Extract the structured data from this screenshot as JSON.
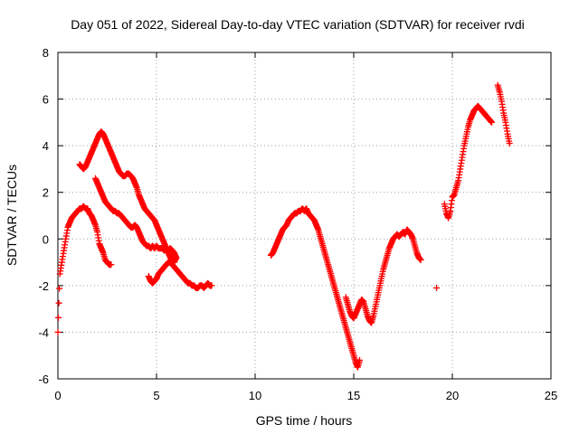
{
  "chart_data": {
    "type": "scatter",
    "title": "Day 051 of 2022, Sidereal Day-to-day VTEC variation (SDTVAR) for receiver rvdi",
    "xlabel": "GPS time / hours",
    "ylabel": "SDTVAR / TECUs",
    "xlim": [
      0,
      25
    ],
    "ylim": [
      -6,
      8
    ],
    "xticks": [
      0,
      5,
      10,
      15,
      20,
      25
    ],
    "yticks": [
      -6,
      -4,
      -2,
      0,
      2,
      4,
      6,
      8
    ],
    "grid": true,
    "marker": "plus",
    "color": "#ff0000",
    "series": [
      {
        "x": [
          0.0,
          0.1,
          0.2,
          0.3,
          0.4,
          0.5,
          0.6,
          0.7,
          0.8,
          0.9,
          1.0,
          1.1,
          1.2,
          1.3,
          1.4,
          1.5,
          1.6,
          1.7,
          1.8,
          1.9,
          2.0,
          2.1,
          2.2,
          2.3,
          2.4,
          2.5,
          2.6,
          2.7
        ],
        "y": [
          -4.0,
          -1.5,
          -1.0,
          -0.5,
          0.0,
          0.5,
          0.7,
          0.9,
          1.0,
          1.1,
          1.2,
          1.3,
          1.3,
          1.4,
          1.3,
          1.3,
          1.1,
          1.0,
          0.8,
          0.6,
          0.3,
          -0.2,
          -0.4,
          -0.6,
          -0.9,
          -1.0,
          -1.1,
          -1.1
        ]
      },
      {
        "x": [
          1.1,
          1.2,
          1.3,
          1.4,
          1.5,
          1.6,
          1.7,
          1.8,
          1.9,
          2.0,
          2.1,
          2.2,
          2.3,
          2.4,
          2.5,
          2.6,
          2.7,
          2.8,
          2.9,
          3.0,
          3.1,
          3.2,
          3.3,
          3.4,
          3.5,
          3.6,
          3.7,
          3.8,
          3.9,
          4.0,
          4.1,
          4.2,
          4.3,
          4.4,
          4.5,
          4.6,
          4.7,
          4.8,
          4.9,
          5.0,
          5.1,
          5.2,
          5.3,
          5.4,
          5.5,
          5.6,
          5.7,
          5.8,
          5.9,
          6.0
        ],
        "y": [
          3.2,
          3.1,
          3.0,
          3.1,
          3.3,
          3.5,
          3.7,
          3.9,
          4.1,
          4.3,
          4.5,
          4.6,
          4.5,
          4.3,
          4.1,
          3.9,
          3.7,
          3.5,
          3.3,
          3.1,
          2.9,
          2.8,
          2.7,
          2.7,
          2.8,
          2.8,
          2.7,
          2.6,
          2.4,
          2.2,
          1.9,
          1.7,
          1.5,
          1.3,
          1.2,
          1.1,
          1.0,
          0.9,
          0.8,
          0.6,
          0.4,
          0.2,
          0.0,
          -0.2,
          -0.4,
          -0.6,
          -0.8,
          -0.9,
          -1.0,
          -0.8
        ]
      },
      {
        "x": [
          1.9,
          2.0,
          2.1,
          2.2,
          2.3,
          2.4,
          2.5,
          2.6,
          2.7,
          2.8,
          2.9,
          3.0,
          3.1,
          3.2,
          3.3,
          3.4,
          3.5,
          3.6,
          3.7,
          3.8,
          3.9,
          4.0,
          4.1,
          4.2,
          4.3,
          4.4,
          4.5,
          4.6,
          4.7,
          4.8,
          4.9,
          5.0,
          5.1,
          5.2,
          5.3,
          5.4,
          5.5,
          5.6,
          5.7,
          5.8,
          5.9,
          6.0
        ],
        "y": [
          2.6,
          2.4,
          2.2,
          2.0,
          1.8,
          1.6,
          1.5,
          1.4,
          1.3,
          1.2,
          1.2,
          1.1,
          1.1,
          1.0,
          0.9,
          0.8,
          0.7,
          0.6,
          0.5,
          0.5,
          0.6,
          0.5,
          0.3,
          0.1,
          -0.1,
          -0.2,
          -0.3,
          -0.3,
          -0.4,
          -0.3,
          -0.4,
          -0.3,
          -0.4,
          -0.4,
          -0.4,
          -0.5,
          -0.4,
          -0.5,
          -0.4,
          -0.5,
          -0.6,
          -0.8
        ]
      },
      {
        "x": [
          4.6,
          4.7,
          4.8,
          4.9,
          5.0,
          5.1,
          5.2,
          5.3,
          5.4,
          5.5,
          5.6,
          5.7,
          5.8,
          5.9,
          6.0,
          6.1,
          6.2,
          6.3,
          6.4,
          6.5,
          6.6,
          6.7,
          6.8,
          6.9,
          7.0,
          7.1,
          7.2,
          7.3,
          7.4,
          7.5,
          7.6,
          7.7,
          7.8
        ],
        "y": [
          -1.6,
          -1.8,
          -1.9,
          -1.8,
          -1.7,
          -1.5,
          -1.4,
          -1.3,
          -1.2,
          -1.1,
          -1.0,
          -1.0,
          -1.1,
          -1.2,
          -1.3,
          -1.4,
          -1.5,
          -1.6,
          -1.7,
          -1.8,
          -1.9,
          -1.9,
          -2.0,
          -2.0,
          -2.1,
          -2.1,
          -2.0,
          -2.0,
          -2.1,
          -2.0,
          -1.9,
          -2.0,
          -2.0
        ]
      },
      {
        "x": [
          10.8,
          10.9,
          11.0,
          11.1,
          11.2,
          11.3,
          11.4,
          11.5,
          11.6,
          11.7,
          11.8,
          11.9,
          12.0,
          12.1,
          12.2,
          12.3,
          12.4,
          12.5,
          12.6,
          12.7,
          12.8,
          12.9,
          13.0,
          13.1,
          13.2,
          13.3,
          13.4,
          13.5,
          13.6,
          13.7,
          13.8,
          13.9,
          14.0,
          14.1,
          14.2,
          14.3,
          14.4,
          14.5,
          14.6,
          14.7,
          14.8,
          14.9,
          15.0,
          15.1,
          15.2,
          15.3
        ],
        "y": [
          -0.7,
          -0.6,
          -0.4,
          -0.2,
          0.0,
          0.2,
          0.4,
          0.5,
          0.6,
          0.8,
          0.9,
          1.0,
          1.1,
          1.1,
          1.2,
          1.2,
          1.3,
          1.2,
          1.3,
          1.1,
          1.0,
          0.9,
          0.8,
          0.6,
          0.4,
          0.1,
          -0.2,
          -0.5,
          -0.8,
          -1.1,
          -1.4,
          -1.7,
          -2.0,
          -2.3,
          -2.6,
          -2.9,
          -3.2,
          -3.5,
          -3.8,
          -4.1,
          -4.4,
          -4.7,
          -5.0,
          -5.3,
          -5.5,
          -5.2
        ]
      },
      {
        "x": [
          14.6,
          14.7,
          14.8,
          14.9,
          15.0,
          15.1,
          15.2,
          15.3,
          15.4,
          15.5,
          15.6,
          15.7,
          15.8,
          15.9,
          16.0,
          16.1,
          16.2,
          16.3,
          16.4,
          16.5,
          16.6,
          16.7,
          16.8,
          16.9,
          17.0,
          17.1,
          17.2,
          17.3,
          17.4,
          17.5,
          17.6,
          17.7,
          17.8,
          17.9,
          18.0,
          18.1,
          18.2,
          18.3,
          18.4
        ],
        "y": [
          -2.5,
          -2.8,
          -3.1,
          -3.3,
          -3.4,
          -3.2,
          -3.0,
          -2.8,
          -2.6,
          -2.7,
          -3.0,
          -3.3,
          -3.5,
          -3.6,
          -3.3,
          -2.9,
          -2.5,
          -2.1,
          -1.7,
          -1.3,
          -1.0,
          -0.7,
          -0.4,
          -0.2,
          0.0,
          0.1,
          0.2,
          0.1,
          0.2,
          0.3,
          0.2,
          0.4,
          0.3,
          0.2,
          0.0,
          -0.3,
          -0.6,
          -0.8,
          -0.9
        ]
      },
      {
        "x": [
          19.2,
          19.6,
          19.7,
          19.8,
          19.9,
          20.0,
          20.1,
          20.2,
          20.3,
          20.4,
          20.5,
          20.6,
          20.7,
          20.8,
          20.9,
          21.0,
          21.1,
          21.2,
          21.3,
          21.4,
          21.5,
          21.6,
          21.7,
          21.8,
          21.9,
          22.0
        ],
        "y": [
          -2.1,
          1.5,
          1.1,
          0.9,
          1.2,
          1.8,
          1.9,
          2.2,
          2.5,
          3.0,
          3.5,
          4.0,
          4.4,
          4.8,
          5.1,
          5.3,
          5.5,
          5.6,
          5.7,
          5.6,
          5.5,
          5.4,
          5.3,
          5.2,
          5.1,
          5.0
        ]
      },
      {
        "x": [
          22.3,
          22.4,
          22.5,
          22.6,
          22.7,
          22.8,
          22.9
        ],
        "y": [
          6.6,
          6.3,
          5.9,
          5.4,
          5.0,
          4.5,
          4.1
        ]
      }
    ]
  }
}
